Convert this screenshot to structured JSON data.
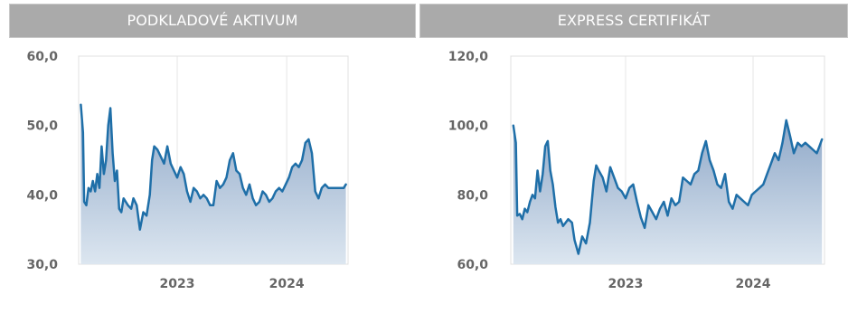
{
  "panels": [
    {
      "title": "PODKLADOVÉ AKTIVUM"
    },
    {
      "title": "EXPRESS CERTIFIKÁT"
    }
  ],
  "colors": {
    "line": "#1f6fa8",
    "fill_top": "#8fa8c8",
    "fill_bottom": "#dce6f0",
    "header_bg": "#aaaaaa",
    "grid": "#e6e6e6",
    "tick_text": "#666666"
  },
  "chart_data": [
    {
      "type": "area",
      "title": "PODKLADOVÉ AKTIVUM",
      "xlabel": "",
      "ylabel": "",
      "ylim": [
        30,
        60
      ],
      "y_ticks": [
        "60,0",
        "50,0",
        "40,0",
        "30,0"
      ],
      "y_tick_values": [
        60,
        50,
        40,
        30
      ],
      "x_ticks": [
        "2023",
        "2024"
      ],
      "x_tick_values": [
        2023.0,
        2024.0
      ],
      "xlim": [
        2022.1,
        2024.56
      ],
      "grid": true,
      "series": [
        {
          "x": [
            2022.12,
            2022.14,
            2022.15,
            2022.17,
            2022.19,
            2022.21,
            2022.23,
            2022.25,
            2022.27,
            2022.29,
            2022.31,
            2022.33,
            2022.35,
            2022.37,
            2022.39,
            2022.41,
            2022.43,
            2022.45,
            2022.47,
            2022.49,
            2022.51,
            2022.53,
            2022.55,
            2022.58,
            2022.6,
            2022.63,
            2022.66,
            2022.69,
            2022.72,
            2022.75,
            2022.77,
            2022.79,
            2022.82,
            2022.85,
            2022.88,
            2022.91,
            2022.94,
            2022.97,
            2023.0,
            2023.03,
            2023.06,
            2023.09,
            2023.12,
            2023.15,
            2023.18,
            2023.21,
            2023.24,
            2023.27,
            2023.3,
            2023.33,
            2023.36,
            2023.39,
            2023.42,
            2023.45,
            2023.48,
            2023.51,
            2023.54,
            2023.57,
            2023.6,
            2023.63,
            2023.66,
            2023.69,
            2023.72,
            2023.75,
            2023.78,
            2023.81,
            2023.84,
            2023.87,
            2023.9,
            2023.93,
            2023.96,
            2023.99,
            2024.02,
            2024.05,
            2024.08,
            2024.11,
            2024.14,
            2024.17,
            2024.2,
            2024.23,
            2024.26,
            2024.29,
            2024.32,
            2024.35,
            2024.38,
            2024.41,
            2024.44,
            2024.47,
            2024.5,
            2024.52,
            2024.54
          ],
          "values": [
            53.0,
            49.0,
            39.0,
            38.5,
            41.0,
            40.5,
            42.0,
            40.5,
            43.0,
            41.0,
            47.0,
            43.0,
            45.0,
            50.0,
            52.5,
            46.0,
            42.0,
            43.5,
            38.0,
            37.5,
            39.5,
            39.0,
            38.5,
            38.0,
            39.5,
            38.5,
            35.0,
            37.5,
            37.0,
            40.0,
            45.0,
            47.0,
            46.5,
            45.5,
            44.5,
            47.0,
            44.5,
            43.5,
            42.5,
            44.0,
            43.0,
            40.5,
            39.0,
            41.0,
            40.5,
            39.5,
            40.0,
            39.5,
            38.5,
            38.5,
            42.0,
            41.0,
            41.5,
            42.5,
            45.0,
            46.0,
            43.5,
            43.0,
            41.0,
            40.0,
            41.5,
            39.5,
            38.5,
            39.0,
            40.5,
            40.0,
            39.0,
            39.5,
            40.5,
            41.0,
            40.5,
            41.5,
            42.5,
            44.0,
            44.5,
            44.0,
            45.0,
            47.5,
            48.0,
            46.0,
            40.5,
            39.5,
            41.0,
            41.5,
            41.0,
            41.0,
            41.0,
            41.0,
            41.0,
            41.0,
            41.5
          ]
        }
      ]
    },
    {
      "type": "area",
      "title": "EXPRESS CERTIFIKÁT",
      "xlabel": "",
      "ylabel": "",
      "ylim": [
        60,
        120
      ],
      "y_ticks": [
        "120,0",
        "100,0",
        "80,0",
        "60,0"
      ],
      "y_tick_values": [
        120,
        100,
        80,
        60
      ],
      "x_ticks": [
        "2023",
        "2024"
      ],
      "x_tick_values": [
        2023.0,
        2024.0
      ],
      "xlim": [
        2022.1,
        2024.56
      ],
      "grid": true,
      "series": [
        {
          "x": [
            2022.12,
            2022.14,
            2022.15,
            2022.17,
            2022.19,
            2022.21,
            2022.23,
            2022.25,
            2022.27,
            2022.29,
            2022.31,
            2022.33,
            2022.35,
            2022.37,
            2022.39,
            2022.41,
            2022.43,
            2022.45,
            2022.47,
            2022.49,
            2022.51,
            2022.53,
            2022.55,
            2022.58,
            2022.6,
            2022.63,
            2022.66,
            2022.69,
            2022.72,
            2022.75,
            2022.77,
            2022.79,
            2022.82,
            2022.85,
            2022.88,
            2022.91,
            2022.94,
            2022.97,
            2023.0,
            2023.03,
            2023.06,
            2023.09,
            2023.12,
            2023.15,
            2023.18,
            2023.21,
            2023.24,
            2023.27,
            2023.3,
            2023.33,
            2023.36,
            2023.39,
            2023.42,
            2023.45,
            2023.48,
            2023.51,
            2023.54,
            2023.57,
            2023.6,
            2023.63,
            2023.66,
            2023.69,
            2023.72,
            2023.75,
            2023.78,
            2023.81,
            2023.84,
            2023.87,
            2023.9,
            2023.93,
            2023.96,
            2023.99,
            2024.02,
            2024.05,
            2024.08,
            2024.11,
            2024.14,
            2024.17,
            2024.2,
            2024.23,
            2024.26,
            2024.29,
            2024.32,
            2024.35,
            2024.38,
            2024.41,
            2024.44,
            2024.47,
            2024.5,
            2024.52,
            2024.54
          ],
          "values": [
            100.0,
            95.0,
            74.0,
            74.5,
            73.0,
            76.0,
            75.0,
            78.0,
            80.0,
            79.0,
            87.0,
            81.0,
            86.0,
            94.0,
            95.5,
            87.0,
            83.0,
            76.5,
            72.0,
            73.0,
            71.0,
            72.0,
            73.0,
            72.0,
            67.0,
            63.0,
            68.0,
            66.0,
            72.0,
            84.0,
            88.5,
            87.0,
            85.0,
            81.0,
            88.0,
            85.0,
            82.0,
            81.0,
            79.0,
            82.0,
            83.0,
            78.0,
            73.5,
            70.5,
            77.0,
            75.0,
            73.0,
            76.0,
            78.0,
            74.0,
            79.0,
            77.0,
            78.0,
            85.0,
            84.0,
            83.0,
            86.0,
            87.0,
            92.0,
            95.5,
            90.0,
            87.0,
            83.0,
            82.0,
            86.0,
            78.0,
            76.0,
            80.0,
            79.0,
            78.0,
            77.0,
            80.0,
            81.0,
            82.0,
            83.0,
            86.0,
            89.0,
            92.0,
            90.0,
            95.0,
            101.5,
            97.0,
            92.0,
            95.0,
            94.0,
            95.0,
            94.0,
            93.0,
            92.0,
            94.0,
            96.0
          ]
        }
      ]
    }
  ]
}
